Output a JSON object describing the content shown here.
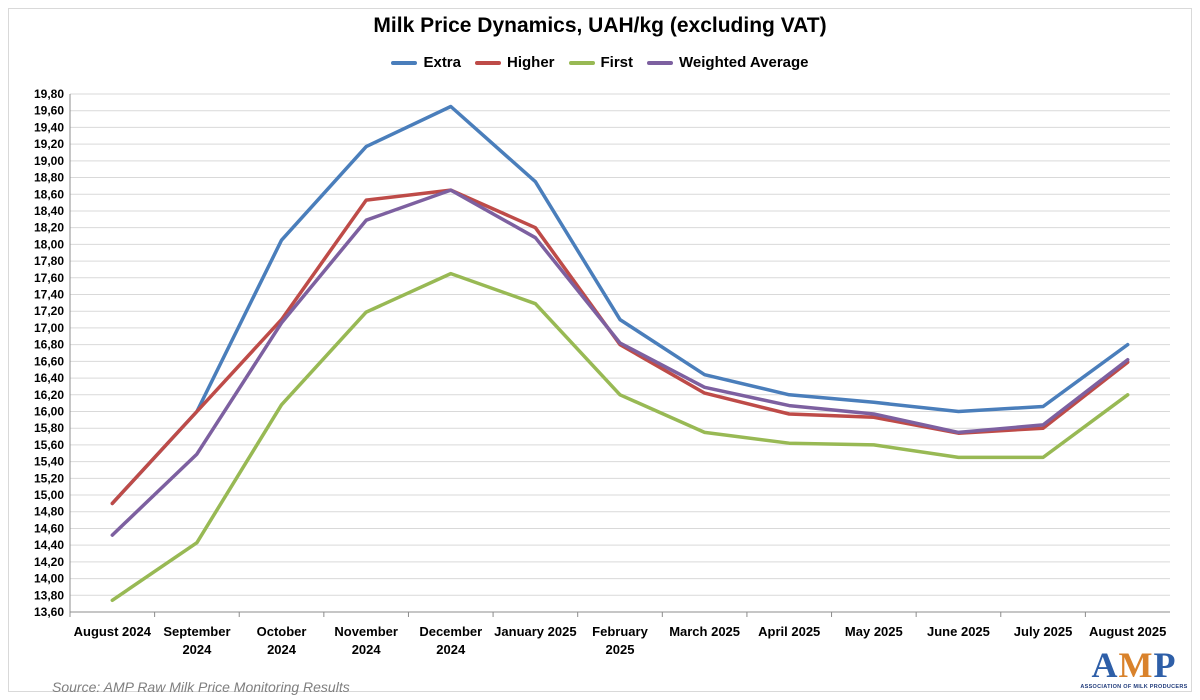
{
  "chart_data": {
    "type": "line",
    "title": "Milk Price Dynamics, UAH/kg (excluding VAT)",
    "xlabel": "",
    "ylabel": "",
    "ylim": [
      13.6,
      19.8
    ],
    "y_ticks": [
      "13,60",
      "13,80",
      "14,00",
      "14,20",
      "14,40",
      "14,60",
      "14,80",
      "15,00",
      "15,20",
      "15,40",
      "15,60",
      "15,80",
      "16,00",
      "16,20",
      "16,40",
      "16,60",
      "16,80",
      "17,00",
      "17,20",
      "17,40",
      "17,60",
      "17,80",
      "18,00",
      "18,20",
      "18,40",
      "18,60",
      "18,80",
      "19,00",
      "19,20",
      "19,40",
      "19,60",
      "19,80"
    ],
    "categories": [
      [
        "August 2024"
      ],
      [
        "September",
        "2024"
      ],
      [
        "October",
        "2024"
      ],
      [
        "November",
        "2024"
      ],
      [
        "December",
        "2024"
      ],
      [
        "January 2025"
      ],
      [
        "February",
        "2025"
      ],
      [
        "March 2025"
      ],
      [
        "April 2025"
      ],
      [
        "May 2025"
      ],
      [
        "June 2025"
      ],
      [
        "July 2025"
      ],
      [
        "August 2025"
      ]
    ],
    "grid": true,
    "legend_position": "top",
    "series": [
      {
        "name": "Extra",
        "color": "#4a7ebb",
        "values": [
          14.9,
          16.0,
          18.05,
          19.17,
          19.65,
          18.75,
          17.1,
          16.44,
          16.2,
          16.11,
          16.0,
          16.06,
          16.8
        ]
      },
      {
        "name": "Higher",
        "color": "#be4b48",
        "values": [
          14.9,
          16.0,
          17.1,
          18.53,
          18.65,
          18.2,
          16.8,
          16.22,
          15.97,
          15.93,
          15.74,
          15.8,
          16.59
        ]
      },
      {
        "name": "First",
        "color": "#98b954",
        "values": [
          13.74,
          14.43,
          16.08,
          17.19,
          17.65,
          17.29,
          16.2,
          15.75,
          15.62,
          15.6,
          15.45,
          15.45,
          16.2
        ]
      },
      {
        "name": "Weighted Average",
        "color": "#7d60a0",
        "values": [
          14.52,
          15.49,
          17.06,
          18.29,
          18.65,
          18.08,
          16.82,
          16.29,
          16.07,
          15.97,
          15.75,
          15.84,
          16.62
        ]
      }
    ]
  },
  "source_note": "Source: AMP Raw Milk Price Monitoring Results",
  "logo": {
    "text": "AMP",
    "subtitle": "Association of milk producers"
  }
}
